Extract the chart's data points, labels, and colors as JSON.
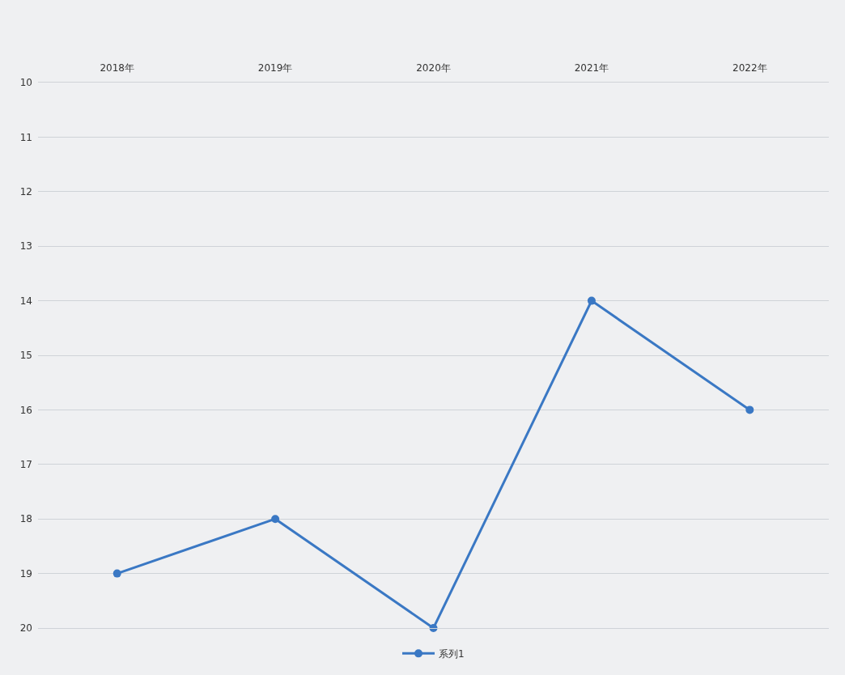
{
  "chart_data": {
    "type": "line",
    "categories": [
      "2018年",
      "2019年",
      "2020年",
      "2021年",
      "2022年"
    ],
    "series": [
      {
        "name": "系列1",
        "color": "#3a78c4",
        "values": [
          19,
          18,
          20,
          14,
          16
        ]
      }
    ],
    "ylim": [
      20,
      10
    ],
    "yticks": [
      10,
      11,
      12,
      13,
      14,
      15,
      16,
      17,
      18,
      19,
      20
    ],
    "grid": "y",
    "legend": "bottom",
    "marker": "circle",
    "line_style": "solid"
  }
}
